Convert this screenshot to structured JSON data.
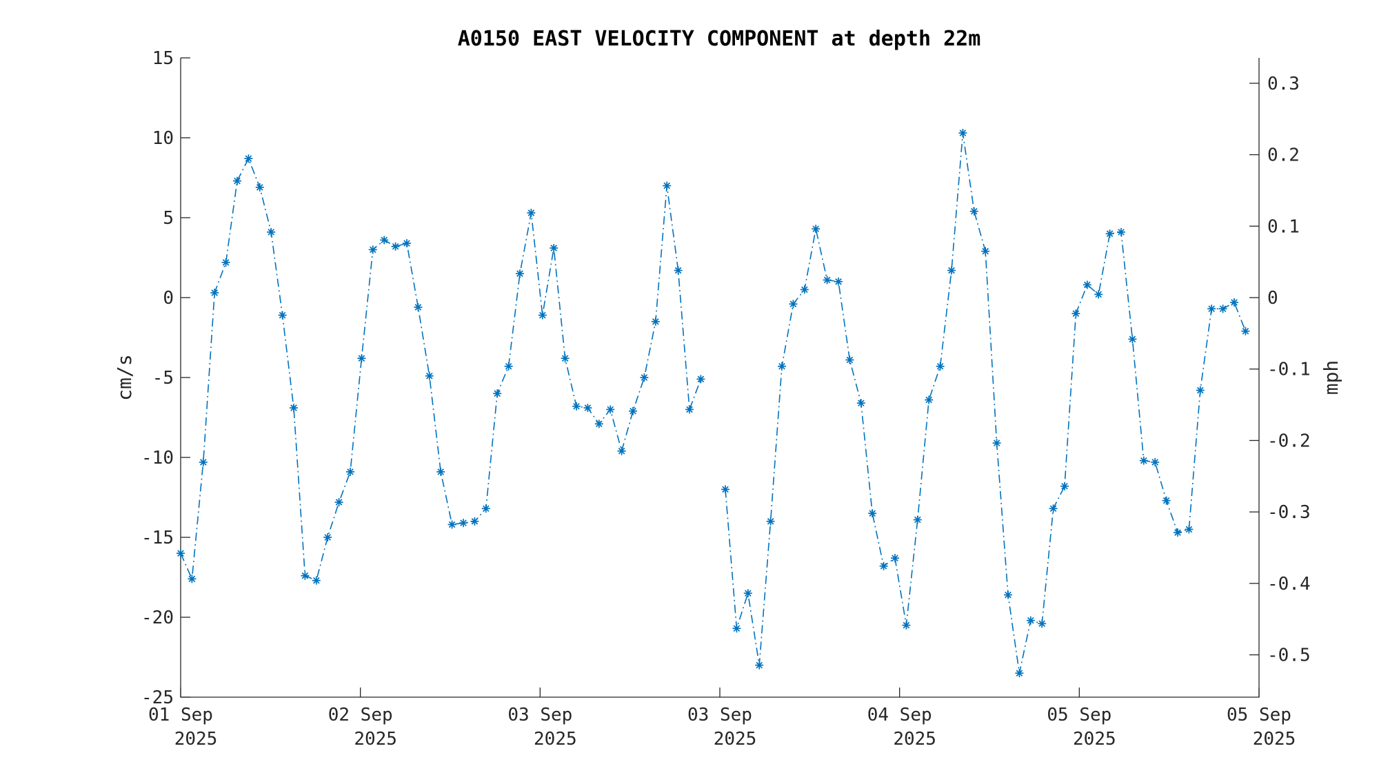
{
  "chart_data": {
    "type": "line",
    "title": "A0150 EAST VELOCITY COMPONENT at depth 22m",
    "ylabel": "cm/s",
    "ylabel_right": "mph",
    "ylim": [
      -25,
      15
    ],
    "yticks": [
      "15",
      "10",
      "5",
      "0",
      "-5",
      "-10",
      "-15",
      "-20",
      "-25"
    ],
    "yticks_right": [
      "0.3",
      "0.2",
      "0.1",
      "0",
      "-0.1",
      "-0.2",
      "-0.3",
      "-0.4",
      "-0.5"
    ],
    "xticks": [
      {
        "day": "01 Sep",
        "year": "2025"
      },
      {
        "day": "02 Sep",
        "year": "2025"
      },
      {
        "day": "03 Sep",
        "year": "2025"
      },
      {
        "day": "03 Sep",
        "year": "2025"
      },
      {
        "day": "04 Sep",
        "year": "2025"
      },
      {
        "day": "05 Sep",
        "year": "2025"
      },
      {
        "day": "05 Sep",
        "year": "2025"
      }
    ],
    "grid": false,
    "colors": {
      "series": "#0072BD",
      "axis": "#262626"
    },
    "series": [
      {
        "values": [
          [
            -16.0,
            -17.6,
            -10.3,
            0.3,
            2.2,
            7.3,
            8.7,
            6.9,
            4.1,
            -1.1,
            -6.9,
            -17.4,
            -17.7,
            -15.0,
            -12.8,
            -10.9,
            -3.8,
            3.0,
            3.6,
            3.2,
            3.4,
            -0.6,
            -4.9,
            -10.9,
            -14.2,
            -14.1,
            -14.0,
            -13.2,
            -6.0,
            -4.3,
            1.5,
            5.3,
            -1.1,
            3.1,
            -3.8,
            -6.8,
            -6.9,
            -7.9,
            -7.0,
            -9.6,
            -7.1,
            -5.0,
            -1.5,
            7.0,
            1.7,
            -7.0,
            -5.1
          ],
          [
            -12.0,
            -20.7,
            -18.5,
            -23.0,
            -14.0,
            -4.3,
            -0.4,
            0.5,
            4.3,
            1.1,
            1.0,
            -3.9,
            -6.6,
            -13.5,
            -16.8,
            -16.3,
            -20.5,
            -13.9,
            -6.4,
            -4.3,
            1.7,
            10.3,
            5.4,
            2.9,
            -9.1,
            -18.6,
            -23.5,
            -20.2,
            -20.4,
            -13.2,
            -11.8,
            -1.0,
            0.8,
            0.2,
            4.0,
            4.1,
            -2.6,
            -10.2,
            -10.3,
            -12.7,
            -14.7,
            -14.5,
            -5.8,
            -0.7,
            -0.7,
            -0.3,
            -2.1
          ]
        ]
      }
    ]
  }
}
